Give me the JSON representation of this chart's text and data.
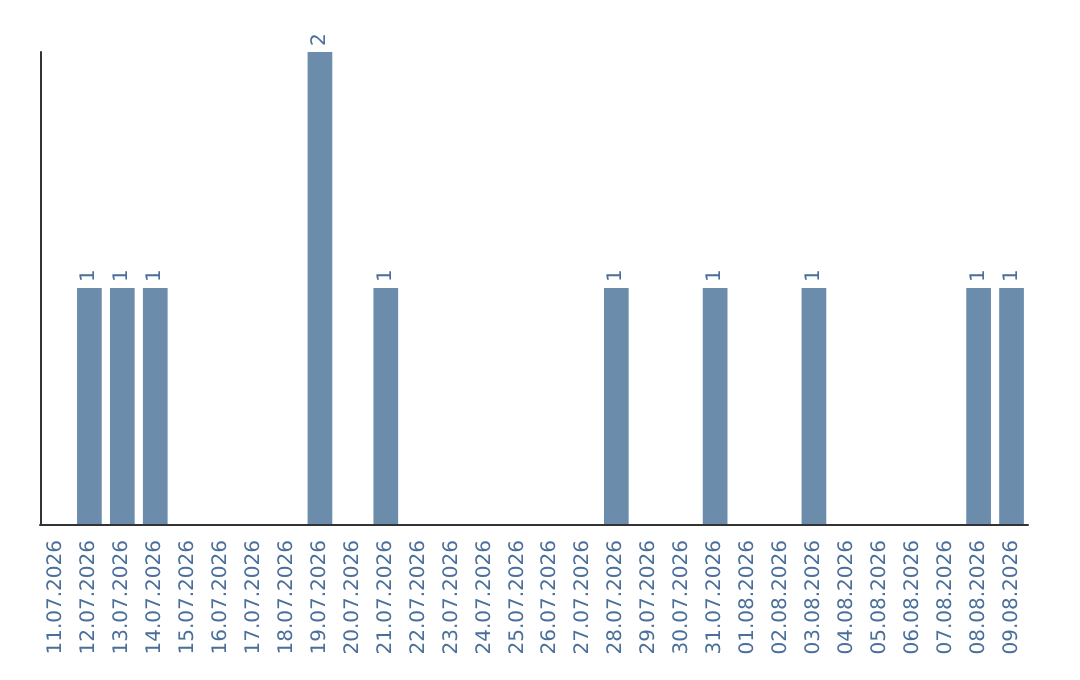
{
  "chart_data": {
    "type": "bar",
    "categories": [
      "11.07.2026",
      "12.07.2026",
      "13.07.2026",
      "14.07.2026",
      "15.07.2026",
      "16.07.2026",
      "17.07.2026",
      "18.07.2026",
      "19.07.2026",
      "20.07.2026",
      "21.07.2026",
      "22.07.2026",
      "23.07.2026",
      "24.07.2026",
      "25.07.2026",
      "26.07.2026",
      "27.07.2026",
      "28.07.2026",
      "29.07.2026",
      "30.07.2026",
      "31.07.2026",
      "01.08.2026",
      "02.08.2026",
      "03.08.2026",
      "04.08.2026",
      "05.08.2026",
      "06.08.2026",
      "07.08.2026",
      "08.08.2026",
      "09.08.2026"
    ],
    "values": [
      0,
      1,
      1,
      1,
      0,
      0,
      0,
      0,
      2,
      0,
      1,
      0,
      0,
      0,
      0,
      0,
      0,
      1,
      0,
      0,
      1,
      0,
      0,
      1,
      0,
      0,
      0,
      0,
      1,
      1
    ],
    "value_labels": [
      null,
      "1",
      "1",
      "1",
      null,
      null,
      null,
      null,
      "2",
      null,
      "1",
      null,
      null,
      null,
      null,
      null,
      null,
      "1",
      null,
      null,
      "1",
      null,
      null,
      "1",
      null,
      null,
      null,
      null,
      "1",
      "1"
    ],
    "color": "#6b8cab",
    "ylim": [
      0,
      2
    ],
    "tick_labels": "x"
  }
}
